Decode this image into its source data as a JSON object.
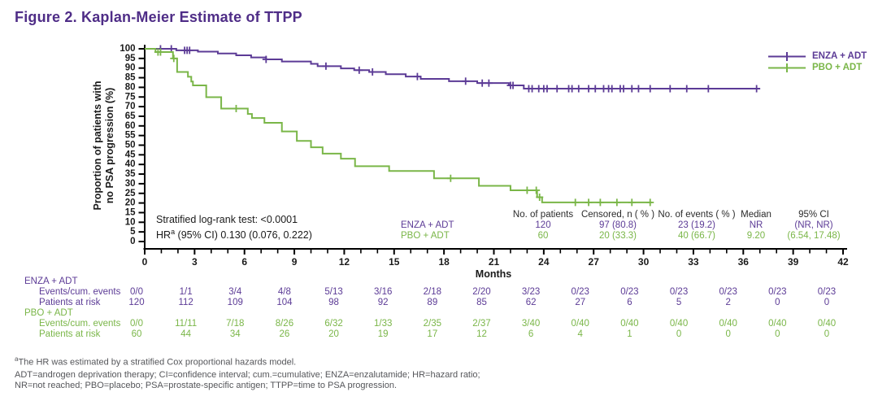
{
  "title": "Figure 2. Kaplan-Meier Estimate of TTPP",
  "colors": {
    "title_purple": "#4F2D87",
    "enza_purple": "#5C3B96",
    "pbo_green": "#7AB648",
    "axis_black": "#000000",
    "footnote_gray": "#55565A"
  },
  "stats": {
    "logrank": "Stratified log-rank test: <0.0001",
    "hr_prefix": "HR",
    "hr_sup": "a",
    "hr_rest": " (95% CI) 0.130 (0.076, 0.222)"
  },
  "summary_table": {
    "headers": [
      "No. of patients",
      "Censored, n ( % )",
      "No. of events ( % )",
      "Median",
      "95% CI"
    ],
    "rows": [
      {
        "label": "ENZA + ADT",
        "values": [
          "120",
          "97 (80.8)",
          "23 (19.2)",
          "NR",
          "(NR, NR)"
        ]
      },
      {
        "label": "PBO + ADT",
        "values": [
          "60",
          "20 (33.3)",
          "40 (66.7)",
          "9.20",
          "(6.54, 17.48)"
        ]
      }
    ]
  },
  "risk_table": {
    "sections": [
      {
        "label": "ENZA + ADT",
        "rows": [
          {
            "label": "Events/cum. events",
            "values": [
              "0/0",
              "1/1",
              "3/4",
              "4/8",
              "5/13",
              "3/16",
              "2/18",
              "2/20",
              "3/23",
              "0/23",
              "0/23",
              "0/23",
              "0/23",
              "0/23",
              "0/23"
            ]
          },
          {
            "label": "Patients at risk",
            "values": [
              "120",
              "112",
              "109",
              "104",
              "98",
              "92",
              "89",
              "85",
              "62",
              "27",
              "6",
              "5",
              "2",
              "0",
              "0"
            ]
          }
        ]
      },
      {
        "label": "PBO + ADT",
        "rows": [
          {
            "label": "Events/cum. events",
            "values": [
              "0/0",
              "11/11",
              "7/18",
              "8/26",
              "6/32",
              "1/33",
              "2/35",
              "2/37",
              "3/40",
              "0/40",
              "0/40",
              "0/40",
              "0/40",
              "0/40",
              "0/40"
            ]
          },
          {
            "label": "Patients at risk",
            "values": [
              "60",
              "44",
              "34",
              "26",
              "20",
              "19",
              "17",
              "12",
              "6",
              "4",
              "1",
              "0",
              "0",
              "0",
              "0"
            ]
          }
        ]
      }
    ]
  },
  "footnotes": {
    "sup": "a",
    "line1": "The HR was estimated by a stratified Cox proportional hazards model.",
    "line2": "ADT=androgen deprivation therapy; CI=confidence interval; cum.=cumulative; ENZA=enzalutamide; HR=hazard ratio;",
    "line3": "NR=not reached; PBO=placebo; PSA=prostate-specific antigen; TTPP=time to PSA progression."
  },
  "chart_data": {
    "type": "line",
    "subtype": "kaplan-meier-step",
    "title": "Figure 2. Kaplan-Meier Estimate of TTPP",
    "xlabel": "Months",
    "ylabel": "Proportion of patients with no PSA progression (%)",
    "ylabel_lines": [
      "Proportion of patients with",
      "no PSA progression (%)"
    ],
    "xlim": [
      0,
      42
    ],
    "ylim": [
      0,
      100
    ],
    "xtick_major_step": 3,
    "xtick_minor_step": 1,
    "ytick_step": 5,
    "grid": false,
    "legend_position": "top-right",
    "series": [
      {
        "name": "ENZA + ADT",
        "color": "#5C3B96",
        "n": 120,
        "median": "NR",
        "steps": [
          [
            0,
            100
          ],
          [
            1.9,
            99.2
          ],
          [
            3.2,
            98.5
          ],
          [
            4.4,
            97.6
          ],
          [
            5.5,
            96.6
          ],
          [
            6.4,
            95.5
          ],
          [
            7.3,
            94.5
          ],
          [
            8.25,
            93.4
          ],
          [
            10.0,
            92.2
          ],
          [
            10.4,
            91.0
          ],
          [
            11.8,
            89.8
          ],
          [
            12.6,
            88.9
          ],
          [
            13.5,
            88.0
          ],
          [
            14.5,
            86.8
          ],
          [
            15.7,
            85.6
          ],
          [
            16.6,
            84.4
          ],
          [
            18.3,
            83.2
          ],
          [
            20.0,
            82.2
          ],
          [
            21.9,
            81.0
          ],
          [
            22.8,
            79.3
          ]
        ],
        "end_x": 37.0,
        "censor_x": [
          0.95,
          1.6,
          2.4,
          2.55,
          2.7,
          7.3,
          10.9,
          12.9,
          13.7,
          16.4,
          19.3,
          20.3,
          20.7,
          22.0,
          22.15,
          23.1,
          23.3,
          23.7,
          24.0,
          24.2,
          24.8,
          25.5,
          25.7,
          26.1,
          26.7,
          27.1,
          27.6,
          27.9,
          28.1,
          28.6,
          28.8,
          29.3,
          29.7,
          30.4,
          31.6,
          32.6,
          33.9,
          36.8
        ]
      },
      {
        "name": "PBO + ADT",
        "color": "#7AB648",
        "n": 60,
        "median": "9.20",
        "steps": [
          [
            0,
            100
          ],
          [
            0.65,
            98.3
          ],
          [
            1.7,
            95.0
          ],
          [
            1.95,
            88.0
          ],
          [
            2.6,
            85.5
          ],
          [
            2.8,
            83.0
          ],
          [
            2.9,
            81.0
          ],
          [
            3.7,
            74.9
          ],
          [
            4.6,
            69.0
          ],
          [
            6.2,
            66.2
          ],
          [
            6.45,
            64.1
          ],
          [
            7.2,
            61.6
          ],
          [
            8.25,
            57.1
          ],
          [
            9.15,
            52.2
          ],
          [
            10.0,
            48.9
          ],
          [
            10.7,
            45.6
          ],
          [
            11.8,
            43.0
          ],
          [
            12.65,
            39.1
          ],
          [
            14.7,
            36.6
          ],
          [
            17.4,
            32.8
          ],
          [
            20.1,
            28.9
          ],
          [
            22.0,
            26.6
          ],
          [
            23.6,
            23.0
          ],
          [
            23.9,
            20.3
          ]
        ],
        "end_x": 30.5,
        "censor_x": [
          0.8,
          0.95,
          1.75,
          5.5,
          18.4,
          23.0,
          23.55,
          23.75,
          25.9,
          26.7,
          27.4,
          28.4,
          29.3,
          30.4
        ]
      }
    ]
  }
}
